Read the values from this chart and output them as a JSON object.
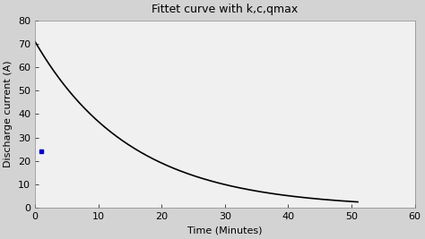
{
  "title": "Fittet curve with k,c,qmax",
  "xlabel": "Time (Minutes)",
  "ylabel": "Discharge current (A)",
  "xlim": [
    0,
    60
  ],
  "ylim": [
    0,
    80
  ],
  "xticks": [
    0,
    10,
    20,
    30,
    40,
    50,
    60
  ],
  "yticks": [
    0,
    10,
    20,
    30,
    40,
    50,
    60,
    70,
    80
  ],
  "curve_color": "#000000",
  "point_color": "#0000cc",
  "point_x": 1.0,
  "point_y": 24.0,
  "k": 0.0656,
  "A": 71.0,
  "x_end": 51.0,
  "background_color": "#f0f0f0",
  "axes_bg_color": "#f0f0f0",
  "line_width": 1.2,
  "title_fontsize": 9,
  "label_fontsize": 8,
  "tick_fontsize": 8
}
